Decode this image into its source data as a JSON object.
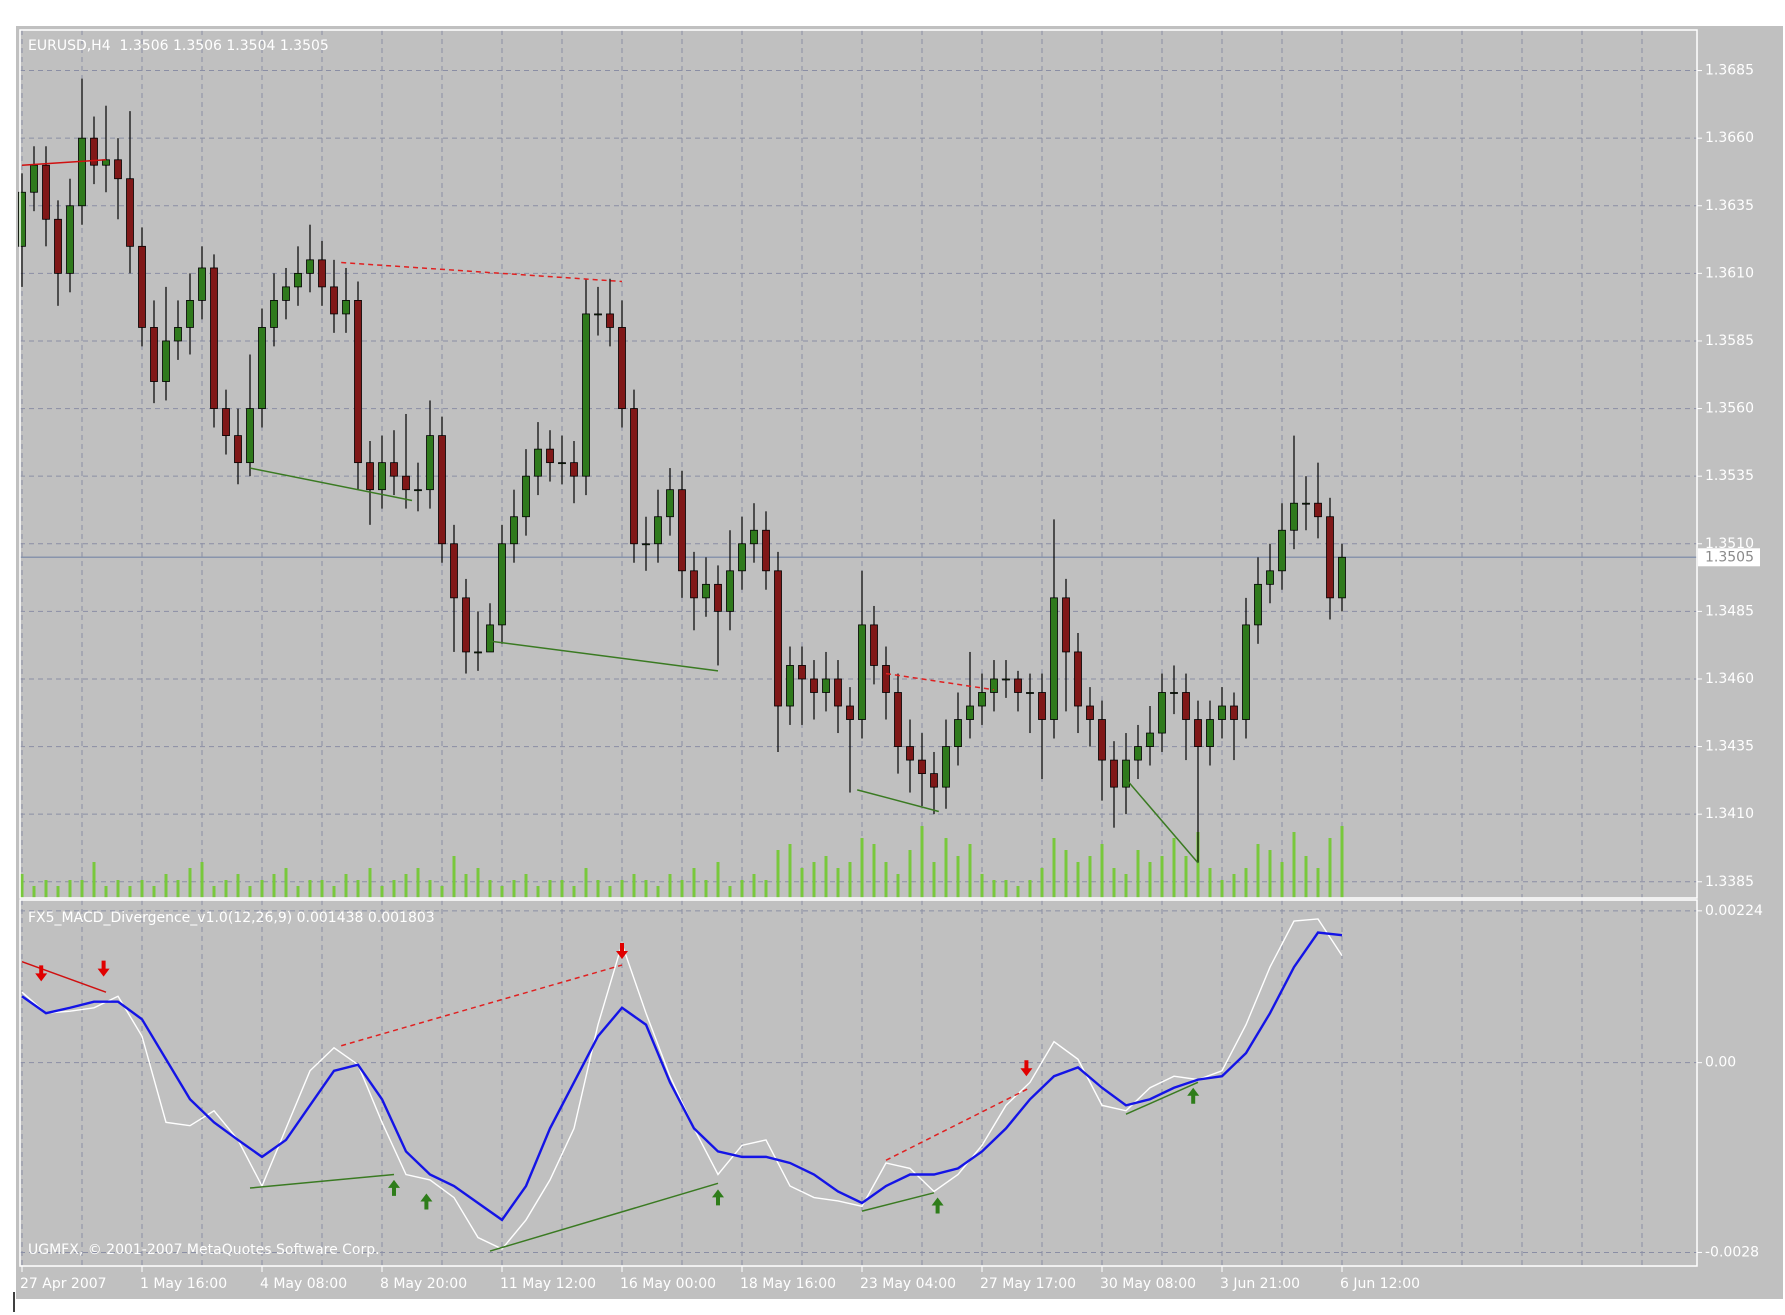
{
  "chart_data": [
    {
      "type": "candlestick",
      "title": "EURUSD,H4  1.3506 1.3506 1.3504 1.3505",
      "categories": [
        "27 Apr 2007",
        null,
        null,
        null,
        null,
        null,
        null,
        null,
        null,
        null,
        "1 May 16:00",
        null,
        null,
        null,
        null,
        null,
        null,
        null,
        null,
        null,
        "4 May 08:00",
        null,
        null,
        null,
        null,
        null,
        null,
        null,
        null,
        null,
        "8 May 20:00",
        null,
        null,
        null,
        null,
        null,
        null,
        null,
        null,
        null,
        "11 May 12:00",
        null,
        null,
        null,
        null,
        null,
        null,
        null,
        null,
        null,
        "16 May 00:00",
        null,
        null,
        null,
        null,
        null,
        null,
        null,
        null,
        null,
        "18 May 16:00",
        null,
        null,
        null,
        null,
        null,
        null,
        null,
        null,
        null,
        "23 May 04:00",
        null,
        null,
        null,
        null,
        null,
        null,
        null,
        null,
        null,
        "27 May 17:00",
        null,
        null,
        null,
        null,
        null,
        null,
        null,
        null,
        null,
        "30 May 08:00",
        null,
        null,
        null,
        null,
        null,
        null,
        null,
        null,
        null,
        "3 Jun 21:00",
        null,
        null,
        null,
        null,
        null,
        null,
        null,
        null,
        null,
        "6 Jun 12:00"
      ],
      "open": [
        1.362,
        1.364,
        1.365,
        1.363,
        1.361,
        1.3635,
        1.366,
        1.365,
        1.3652,
        1.3645,
        1.362,
        1.359,
        1.357,
        1.3585,
        1.359,
        1.36,
        1.3612,
        1.356,
        1.355,
        1.354,
        1.356,
        1.359,
        1.36,
        1.3605,
        1.361,
        1.3615,
        1.3605,
        1.3595,
        1.36,
        1.354,
        1.353,
        1.354,
        1.3535,
        1.353,
        1.353,
        1.355,
        1.351,
        1.349,
        1.347,
        1.347,
        1.348,
        1.351,
        1.352,
        1.3535,
        1.3545,
        1.354,
        1.354,
        1.3535,
        1.3595,
        1.3595,
        1.359,
        1.356,
        1.351,
        1.351,
        1.352,
        1.353,
        1.35,
        1.349,
        1.3495,
        1.3485,
        1.35,
        1.351,
        1.3515,
        1.35,
        1.345,
        1.3465,
        1.346,
        1.3455,
        1.346,
        1.345,
        1.3445,
        1.348,
        1.3465,
        1.3455,
        1.3435,
        1.343,
        1.3425,
        1.342,
        1.3435,
        1.3445,
        1.345,
        1.3455,
        1.346,
        1.346,
        1.3455,
        1.3455,
        1.3445,
        1.349,
        1.347,
        1.345,
        1.3445,
        1.343,
        1.342,
        1.343,
        1.3435,
        1.344,
        1.3455,
        1.3455,
        1.3445,
        1.3435,
        1.3445,
        1.345,
        1.3445,
        1.348,
        1.3495,
        1.35,
        1.3515,
        1.3525,
        1.3525,
        1.352,
        1.349
      ],
      "high": [
        1.3647,
        1.3657,
        1.3657,
        1.3637,
        1.3645,
        1.3682,
        1.3668,
        1.3672,
        1.366,
        1.367,
        1.3627,
        1.36,
        1.3605,
        1.36,
        1.361,
        1.362,
        1.3617,
        1.3567,
        1.356,
        1.358,
        1.3597,
        1.361,
        1.3612,
        1.362,
        1.3628,
        1.3622,
        1.3615,
        1.3612,
        1.3607,
        1.3548,
        1.355,
        1.3552,
        1.3558,
        1.354,
        1.3563,
        1.3557,
        1.3517,
        1.3497,
        1.3485,
        1.3488,
        1.3517,
        1.353,
        1.3545,
        1.3555,
        1.3552,
        1.355,
        1.3548,
        1.3608,
        1.3605,
        1.3608,
        1.36,
        1.3567,
        1.352,
        1.353,
        1.3538,
        1.3537,
        1.3507,
        1.3505,
        1.3502,
        1.3515,
        1.352,
        1.3525,
        1.3522,
        1.3507,
        1.3472,
        1.3472,
        1.3467,
        1.347,
        1.3467,
        1.3457,
        1.35,
        1.3487,
        1.3472,
        1.3462,
        1.3445,
        1.344,
        1.3433,
        1.3445,
        1.3455,
        1.347,
        1.3462,
        1.3467,
        1.3467,
        1.3463,
        1.3462,
        1.3462,
        1.3519,
        1.3497,
        1.3477,
        1.3457,
        1.3452,
        1.3437,
        1.344,
        1.3443,
        1.345,
        1.3462,
        1.3465,
        1.3462,
        1.3452,
        1.3452,
        1.3457,
        1.3455,
        1.349,
        1.3505,
        1.351,
        1.3525,
        1.355,
        1.3535,
        1.354,
        1.3527,
        1.351
      ],
      "low": [
        1.3605,
        1.3633,
        1.362,
        1.3598,
        1.3603,
        1.3628,
        1.3643,
        1.364,
        1.363,
        1.361,
        1.3583,
        1.3562,
        1.3563,
        1.3578,
        1.358,
        1.3593,
        1.3553,
        1.3543,
        1.3532,
        1.3535,
        1.3553,
        1.3583,
        1.3593,
        1.3598,
        1.3603,
        1.3598,
        1.3588,
        1.3588,
        1.353,
        1.3517,
        1.3523,
        1.3528,
        1.3523,
        1.3522,
        1.3523,
        1.3503,
        1.347,
        1.3462,
        1.3463,
        1.347,
        1.3473,
        1.3503,
        1.3513,
        1.3528,
        1.3533,
        1.3532,
        1.3525,
        1.3528,
        1.3587,
        1.3583,
        1.3553,
        1.3503,
        1.35,
        1.3503,
        1.3513,
        1.349,
        1.3478,
        1.3483,
        1.3465,
        1.3478,
        1.3493,
        1.3503,
        1.3493,
        1.3433,
        1.3443,
        1.3443,
        1.3445,
        1.3448,
        1.344,
        1.3418,
        1.3438,
        1.3458,
        1.3445,
        1.3425,
        1.3418,
        1.3413,
        1.341,
        1.3412,
        1.3428,
        1.3438,
        1.3443,
        1.3448,
        1.3453,
        1.3448,
        1.344,
        1.3423,
        1.3438,
        1.3448,
        1.344,
        1.3435,
        1.3415,
        1.3405,
        1.341,
        1.3423,
        1.3428,
        1.3433,
        1.3447,
        1.343,
        1.3392,
        1.3428,
        1.3438,
        1.343,
        1.3438,
        1.3473,
        1.3488,
        1.3493,
        1.3508,
        1.3515,
        1.3512,
        1.3482,
        1.3485
      ],
      "close": [
        1.364,
        1.365,
        1.363,
        1.361,
        1.3635,
        1.366,
        1.365,
        1.3652,
        1.3645,
        1.362,
        1.359,
        1.357,
        1.3585,
        1.359,
        1.36,
        1.3612,
        1.356,
        1.355,
        1.354,
        1.356,
        1.359,
        1.36,
        1.3605,
        1.361,
        1.3615,
        1.3605,
        1.3595,
        1.36,
        1.354,
        1.353,
        1.354,
        1.3535,
        1.353,
        1.353,
        1.355,
        1.351,
        1.349,
        1.347,
        1.347,
        1.348,
        1.351,
        1.352,
        1.3535,
        1.3545,
        1.354,
        1.354,
        1.3535,
        1.3595,
        1.3595,
        1.359,
        1.356,
        1.351,
        1.351,
        1.352,
        1.353,
        1.35,
        1.349,
        1.3495,
        1.3485,
        1.35,
        1.351,
        1.3515,
        1.35,
        1.345,
        1.3465,
        1.346,
        1.3455,
        1.346,
        1.345,
        1.3445,
        1.348,
        1.3465,
        1.3455,
        1.3435,
        1.343,
        1.3425,
        1.342,
        1.3435,
        1.3445,
        1.345,
        1.3455,
        1.346,
        1.346,
        1.3455,
        1.3455,
        1.3445,
        1.349,
        1.347,
        1.345,
        1.3445,
        1.343,
        1.342,
        1.343,
        1.3435,
        1.344,
        1.3455,
        1.3455,
        1.3445,
        1.3435,
        1.3445,
        1.345,
        1.3445,
        1.348,
        1.3495,
        1.35,
        1.3515,
        1.3525,
        1.3525,
        1.352,
        1.349,
        1.3505
      ],
      "up_color": "#2f7a1c",
      "down_color": "#801818",
      "volume": [
        4,
        2,
        3,
        2,
        3,
        3,
        6,
        2,
        3,
        2,
        3,
        2,
        4,
        3,
        5,
        6,
        2,
        3,
        4,
        2,
        3,
        4,
        5,
        2,
        3,
        3,
        2,
        4,
        3,
        5,
        2,
        3,
        4,
        5,
        3,
        2,
        7,
        4,
        5,
        3,
        2,
        3,
        4,
        2,
        3,
        3,
        2,
        5,
        3,
        2,
        3,
        4,
        3,
        2,
        4,
        3,
        5,
        3,
        6,
        2,
        3,
        4,
        3,
        8,
        9,
        5,
        6,
        7,
        5,
        6,
        10,
        9,
        6,
        4,
        8,
        12,
        6,
        10,
        7,
        9,
        4,
        3,
        3,
        2,
        3,
        5,
        10,
        8,
        6,
        7,
        9,
        5,
        4,
        8,
        6,
        7,
        10,
        7,
        11,
        5,
        3,
        4,
        5,
        9,
        8,
        6,
        11,
        7,
        5,
        10,
        12
      ],
      "volume_color": "#78c83c",
      "last_price": 1.3505,
      "ylim": [
        1.3379,
        1.37
      ],
      "yticks": [
        1.3385,
        {
          "value": 1.341,
          "label": "1.3410"
        },
        1.3435,
        {
          "value": 1.346,
          "label": "1.3460"
        },
        1.3485,
        {
          "value": 1.351,
          "label": "1.3510"
        },
        1.3535,
        {
          "value": 1.356,
          "label": "1.3560"
        },
        1.3585,
        {
          "value": 1.361,
          "label": "1.3610"
        },
        1.3635,
        {
          "value": 1.366,
          "label": "1.3660"
        },
        1.3685
      ],
      "grid": true,
      "trendlines": [
        {
          "color": "#d01010",
          "dashed": false,
          "x": [
            0,
            7
          ],
          "values": [
            1.365,
            1.3652
          ]
        },
        {
          "color": "#e02020",
          "dashed": true,
          "x": [
            26.6,
            50
          ],
          "values": [
            1.3614,
            1.3607
          ]
        },
        {
          "color": "#3a7a22",
          "dashed": false,
          "x": [
            19,
            32.5
          ],
          "values": [
            1.3538,
            1.3526
          ]
        },
        {
          "color": "#3a7a22",
          "dashed": false,
          "x": [
            39,
            58
          ],
          "values": [
            1.3474,
            1.3463
          ]
        },
        {
          "color": "#3a7a22",
          "dashed": false,
          "x": [
            69.6,
            76.4
          ],
          "values": [
            1.3419,
            1.3411
          ]
        },
        {
          "color": "#e02020",
          "dashed": true,
          "x": [
            72,
            81
          ],
          "values": [
            1.3462,
            1.3456
          ]
        },
        {
          "color": "#3a7a22",
          "dashed": false,
          "x": [
            92,
            98
          ],
          "values": [
            1.3423,
            1.3392
          ]
        }
      ]
    },
    {
      "type": "line",
      "title": "FX5_MACD_Divergence_v1.0(12,26,9) 0.001438 0.001803",
      "annotation": "UGMFX, © 2001-2007 MetaQuotes Software Corp.",
      "x": [
        0,
        2,
        4,
        6,
        8,
        10,
        12,
        14,
        16,
        18,
        20,
        22,
        24,
        26,
        28,
        30,
        32,
        34,
        36,
        38,
        40,
        42,
        44,
        46,
        48,
        50,
        52,
        54,
        56,
        58,
        60,
        62,
        64,
        66,
        68,
        70,
        72,
        74,
        76,
        78,
        80,
        82,
        84,
        86,
        88,
        90,
        92,
        94,
        96,
        98,
        100,
        102,
        104,
        106,
        108,
        110
      ],
      "series": [
        {
          "color": "#ffffff",
          "values": [
            0.00104,
            0.00073,
            0.00076,
            0.00081,
            0.00098,
            0.00039,
            -0.00088,
            -0.00093,
            -0.00071,
            -0.00114,
            -0.00182,
            -0.00097,
            -0.00012,
            0.00022,
            -3e-05,
            -0.00088,
            -0.00165,
            -0.00173,
            -0.00199,
            -0.00258,
            -0.00275,
            -0.00232,
            -0.00173,
            -0.00097,
            0.00056,
            0.00175,
            0.00073,
            -0.0002,
            -0.00097,
            -0.00165,
            -0.00122,
            -0.00114,
            -0.00182,
            -0.00199,
            -0.00204,
            -0.00212,
            -0.00148,
            -0.00156,
            -0.0019,
            -0.00165,
            -0.00122,
            -0.00063,
            -0.00029,
            0.00031,
            5e-05,
            -0.00063,
            -0.00071,
            -0.00037,
            -0.0002,
            -0.00025,
            -0.00012,
            0.00056,
            0.00141,
            0.00209,
            0.00212,
            0.00158
          ]
        },
        {
          "color": "#1414e6",
          "values": [
            0.00098,
            0.00073,
            0.00081,
            0.0009,
            0.0009,
            0.00064,
            5e-05,
            -0.00054,
            -0.00088,
            -0.00114,
            -0.00139,
            -0.00114,
            -0.00063,
            -0.00012,
            -3e-05,
            -0.00054,
            -0.00131,
            -0.00165,
            -0.00182,
            -0.00207,
            -0.00232,
            -0.00182,
            -0.00097,
            -0.00029,
            0.00039,
            0.00081,
            0.00056,
            -0.00029,
            -0.00097,
            -0.00131,
            -0.00139,
            -0.00139,
            -0.00148,
            -0.00165,
            -0.0019,
            -0.00207,
            -0.00182,
            -0.00165,
            -0.00165,
            -0.00156,
            -0.00131,
            -0.00097,
            -0.00054,
            -0.0002,
            -7e-05,
            -0.00037,
            -0.00063,
            -0.00054,
            -0.00037,
            -0.00025,
            -0.0002,
            0.00014,
            0.00073,
            0.00141,
            0.00192,
            0.00188
          ]
        }
      ],
      "trendlines": [
        {
          "color": "#d01010",
          "dashed": false,
          "x": [
            0,
            7
          ],
          "values": [
            0.00149,
            0.00104
          ]
        },
        {
          "color": "#e02020",
          "dashed": true,
          "x": [
            26.6,
            50
          ],
          "values": [
            0.00025,
            0.00144
          ]
        },
        {
          "color": "#3a7a22",
          "dashed": false,
          "x": [
            19,
            31
          ],
          "values": [
            -0.00185,
            -0.00165
          ]
        },
        {
          "color": "#3a7a22",
          "dashed": false,
          "x": [
            39,
            58
          ],
          "values": [
            -0.00278,
            -0.00178
          ]
        },
        {
          "color": "#3a7a22",
          "dashed": false,
          "x": [
            70,
            76
          ],
          "values": [
            -0.00219,
            -0.00192
          ]
        },
        {
          "color": "#e02020",
          "dashed": true,
          "x": [
            72,
            84
          ],
          "values": [
            -0.00144,
            -0.00037
          ]
        },
        {
          "color": "#3a7a22",
          "dashed": false,
          "x": [
            92,
            98
          ],
          "values": [
            -0.00076,
            -0.00029
          ]
        }
      ],
      "down_arrows": {
        "color": "#e00000",
        "x": [
          1.6,
          6.8,
          50,
          83.7
        ],
        "values": [
          0.0012,
          0.00127,
          0.00153,
          -0.0002
        ]
      },
      "up_arrows": {
        "color": "#2e7d1a",
        "x": [
          31,
          33.7,
          58,
          76.3,
          97.6
        ],
        "values": [
          -0.00173,
          -0.00193,
          -0.00187,
          -0.00199,
          -0.00037
        ]
      },
      "ylim": [
        -0.003,
        0.0024
      ],
      "yticks": [
        0.00224,
        {
          "value": 0,
          "label": "0.00"
        },
        -0.0028
      ],
      "grid": true
    }
  ]
}
